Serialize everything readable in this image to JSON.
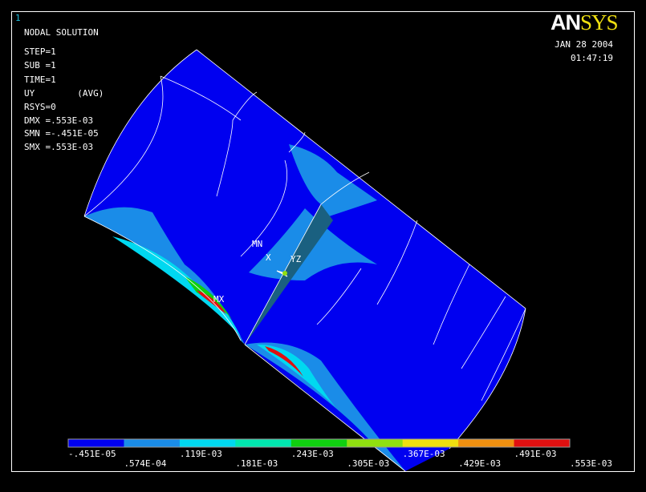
{
  "window_number": "1",
  "info_lines": [
    "NODAL SOLUTION",
    "STEP=1",
    "SUB =1",
    "TIME=1",
    "UY        (AVG)",
    "RSYS=0",
    "DMX =.553E-03",
    "SMN =-.451E-05",
    "SMX =.553E-03"
  ],
  "logo": {
    "part1": "AN",
    "part2": "SYS"
  },
  "date": "JAN 28 2004",
  "time": "01:47:19",
  "markers": {
    "min": "MN",
    "max": "MX",
    "axis_x": "X",
    "axis_yz": "YZ"
  },
  "legend": {
    "colors": [
      "#0000f0",
      "#1a8ce8",
      "#00d8f0",
      "#00e8b0",
      "#10d010",
      "#90e010",
      "#f0e010",
      "#f09010",
      "#e01010"
    ],
    "labels": [
      "-.451E-05",
      ".574E-04",
      ".119E-03",
      ".181E-03",
      ".243E-03",
      ".305E-03",
      ".367E-03",
      ".429E-03",
      ".491E-03",
      ".553E-03"
    ]
  }
}
